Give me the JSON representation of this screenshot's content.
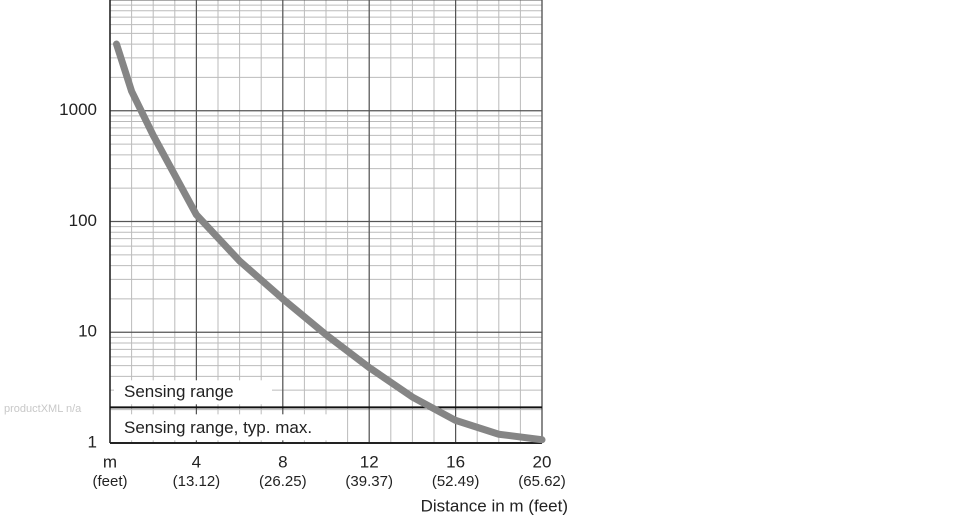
{
  "chart_data": {
    "type": "line",
    "x_label": "Distance in m (feet)",
    "watermark": "productXML n/a",
    "xlim": [
      0,
      20
    ],
    "xticks": [
      {
        "value": 0,
        "label": "m"
      },
      4,
      8,
      12,
      16,
      20
    ],
    "xtick_sublabels": [
      "(feet)",
      "(13.12)",
      "(26.25)",
      "(39.37)",
      "(52.49)",
      "(65.62)"
    ],
    "ylim": [
      1,
      10000
    ],
    "yticks": [
      1,
      10,
      100,
      1000
    ],
    "log_y": true,
    "grid": true,
    "x": [
      0.3,
      1,
      2,
      4,
      6,
      8,
      10,
      12,
      14,
      16,
      18,
      20
    ],
    "series": [
      {
        "color": "#858585",
        "values": [
          4000,
          1500,
          600,
          115,
          44,
          20,
          9.5,
          4.8,
          2.6,
          1.6,
          1.2,
          1.07
        ]
      }
    ],
    "reference_line": {
      "value": 2.1,
      "label_above": "Sensing range",
      "label_below": "Sensing range, typ. max."
    }
  }
}
